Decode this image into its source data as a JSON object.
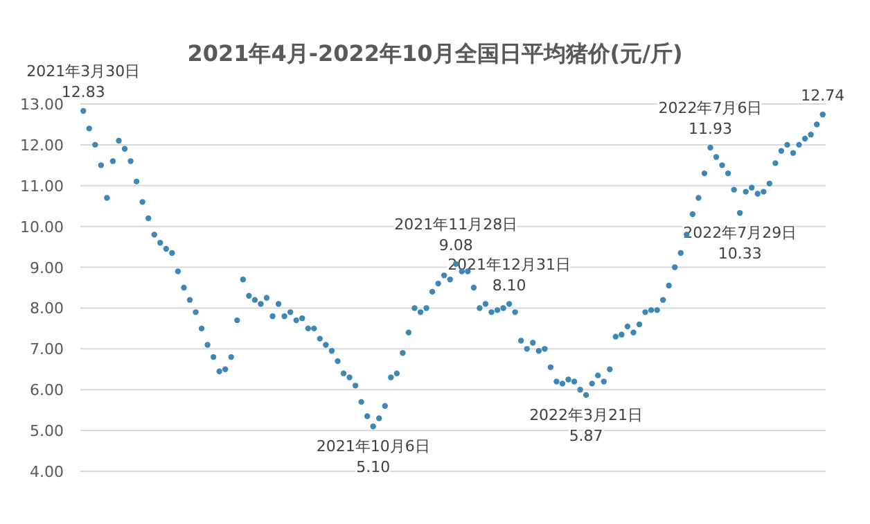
{
  "chart_data": {
    "type": "scatter",
    "title": "2021年4月-2022年10月全国日平均猪价(元/斤)",
    "categories": [
      null,
      null,
      null,
      null,
      null,
      null,
      null,
      null,
      null,
      null,
      null,
      null,
      null,
      null,
      null,
      null,
      null,
      null,
      null,
      null,
      null,
      null,
      null,
      null,
      null,
      null,
      null,
      null,
      null,
      null,
      null,
      null,
      null,
      null,
      null,
      null,
      null,
      null,
      null,
      null,
      null,
      null,
      null,
      null,
      null,
      null,
      null,
      null,
      null,
      null,
      null,
      null,
      null,
      null,
      null,
      null,
      null,
      null,
      null,
      null,
      null,
      null,
      null,
      null,
      null,
      null,
      null,
      null,
      null,
      null,
      null,
      null,
      null,
      null,
      null,
      null,
      null,
      null,
      null,
      null,
      null,
      null,
      null,
      null,
      null,
      null,
      null,
      null,
      null,
      null,
      null,
      null,
      null,
      null,
      null,
      null,
      null,
      null,
      null,
      null,
      null,
      null,
      null,
      null,
      null,
      null,
      null,
      null,
      null,
      null,
      null,
      null,
      null,
      null,
      null,
      null,
      null,
      null,
      null,
      null,
      null,
      null,
      null,
      null,
      null,
      null
    ],
    "series": [
      {
        "color": "#3d87b5",
        "values": [
          12.83,
          12.4,
          12.0,
          11.5,
          10.7,
          11.6,
          12.1,
          11.9,
          11.6,
          11.1,
          10.6,
          10.2,
          9.8,
          9.6,
          9.45,
          9.35,
          8.9,
          8.5,
          8.2,
          7.9,
          7.5,
          7.1,
          6.8,
          6.45,
          6.5,
          6.8,
          7.7,
          8.7,
          8.3,
          8.2,
          8.1,
          8.25,
          7.8,
          8.1,
          7.8,
          7.9,
          7.7,
          7.75,
          7.5,
          7.5,
          7.25,
          7.1,
          6.95,
          6.7,
          6.4,
          6.3,
          6.1,
          5.7,
          5.35,
          5.1,
          5.3,
          5.6,
          6.3,
          6.4,
          6.9,
          7.4,
          8.0,
          7.9,
          8.0,
          8.4,
          8.6,
          8.8,
          8.7,
          9.08,
          8.9,
          8.9,
          8.5,
          8.0,
          8.1,
          7.9,
          7.95,
          8.0,
          8.1,
          7.9,
          7.2,
          7.0,
          7.15,
          6.95,
          7.0,
          6.55,
          6.2,
          6.15,
          6.25,
          6.2,
          6.0,
          5.87,
          6.15,
          6.35,
          6.2,
          6.5,
          7.3,
          7.35,
          7.55,
          7.4,
          7.6,
          7.9,
          7.95,
          7.95,
          8.2,
          8.55,
          9.0,
          9.35,
          9.8,
          10.3,
          10.7,
          11.3,
          11.93,
          11.7,
          11.5,
          11.3,
          10.9,
          10.33,
          10.85,
          10.95,
          10.8,
          10.85,
          11.05,
          11.55,
          11.85,
          12.0,
          11.8,
          12.0,
          12.15,
          12.25,
          12.5,
          12.74
        ],
        "value_labels": [
          "2021年3月30日\n12.83",
          null,
          null,
          null,
          null,
          null,
          null,
          null,
          null,
          null,
          null,
          null,
          null,
          null,
          null,
          null,
          null,
          null,
          null,
          null,
          null,
          null,
          null,
          null,
          null,
          null,
          null,
          null,
          null,
          null,
          null,
          null,
          null,
          null,
          null,
          null,
          null,
          null,
          null,
          null,
          null,
          null,
          null,
          null,
          null,
          null,
          null,
          null,
          null,
          "2021年10月6日\n5.10",
          null,
          null,
          null,
          null,
          null,
          null,
          null,
          null,
          null,
          null,
          null,
          null,
          null,
          "2021年11月28日\n9.08",
          null,
          null,
          null,
          null,
          null,
          null,
          null,
          null,
          "2021年12月31日\n8.10",
          null,
          null,
          null,
          null,
          null,
          null,
          null,
          null,
          null,
          null,
          null,
          null,
          "2022年3月21日\n5.87",
          null,
          null,
          null,
          null,
          null,
          null,
          null,
          null,
          null,
          null,
          null,
          null,
          null,
          null,
          null,
          null,
          null,
          null,
          null,
          null,
          "2022年7月6日\n11.93",
          null,
          null,
          null,
          null,
          "2022年7月29日\n10.33",
          null,
          null,
          null,
          null,
          null,
          null,
          null,
          null,
          null,
          null,
          null,
          null,
          null,
          "12.74"
        ]
      }
    ],
    "ylim": [
      4,
      13
    ],
    "yticks": [
      {
        "value": 4,
        "label": "4.00"
      },
      {
        "value": 5,
        "label": "5.00"
      },
      {
        "value": 6,
        "label": "6.00"
      },
      {
        "value": 7,
        "label": "7.00"
      },
      {
        "value": 8,
        "label": "8.00"
      },
      {
        "value": 9,
        "label": "9.00"
      },
      {
        "value": 10,
        "label": "10.00"
      },
      {
        "value": 11,
        "label": "11.00"
      },
      {
        "value": 12,
        "label": "12.00"
      },
      {
        "value": 13,
        "label": "13.00"
      }
    ],
    "grid": "y",
    "marker": "circle"
  }
}
